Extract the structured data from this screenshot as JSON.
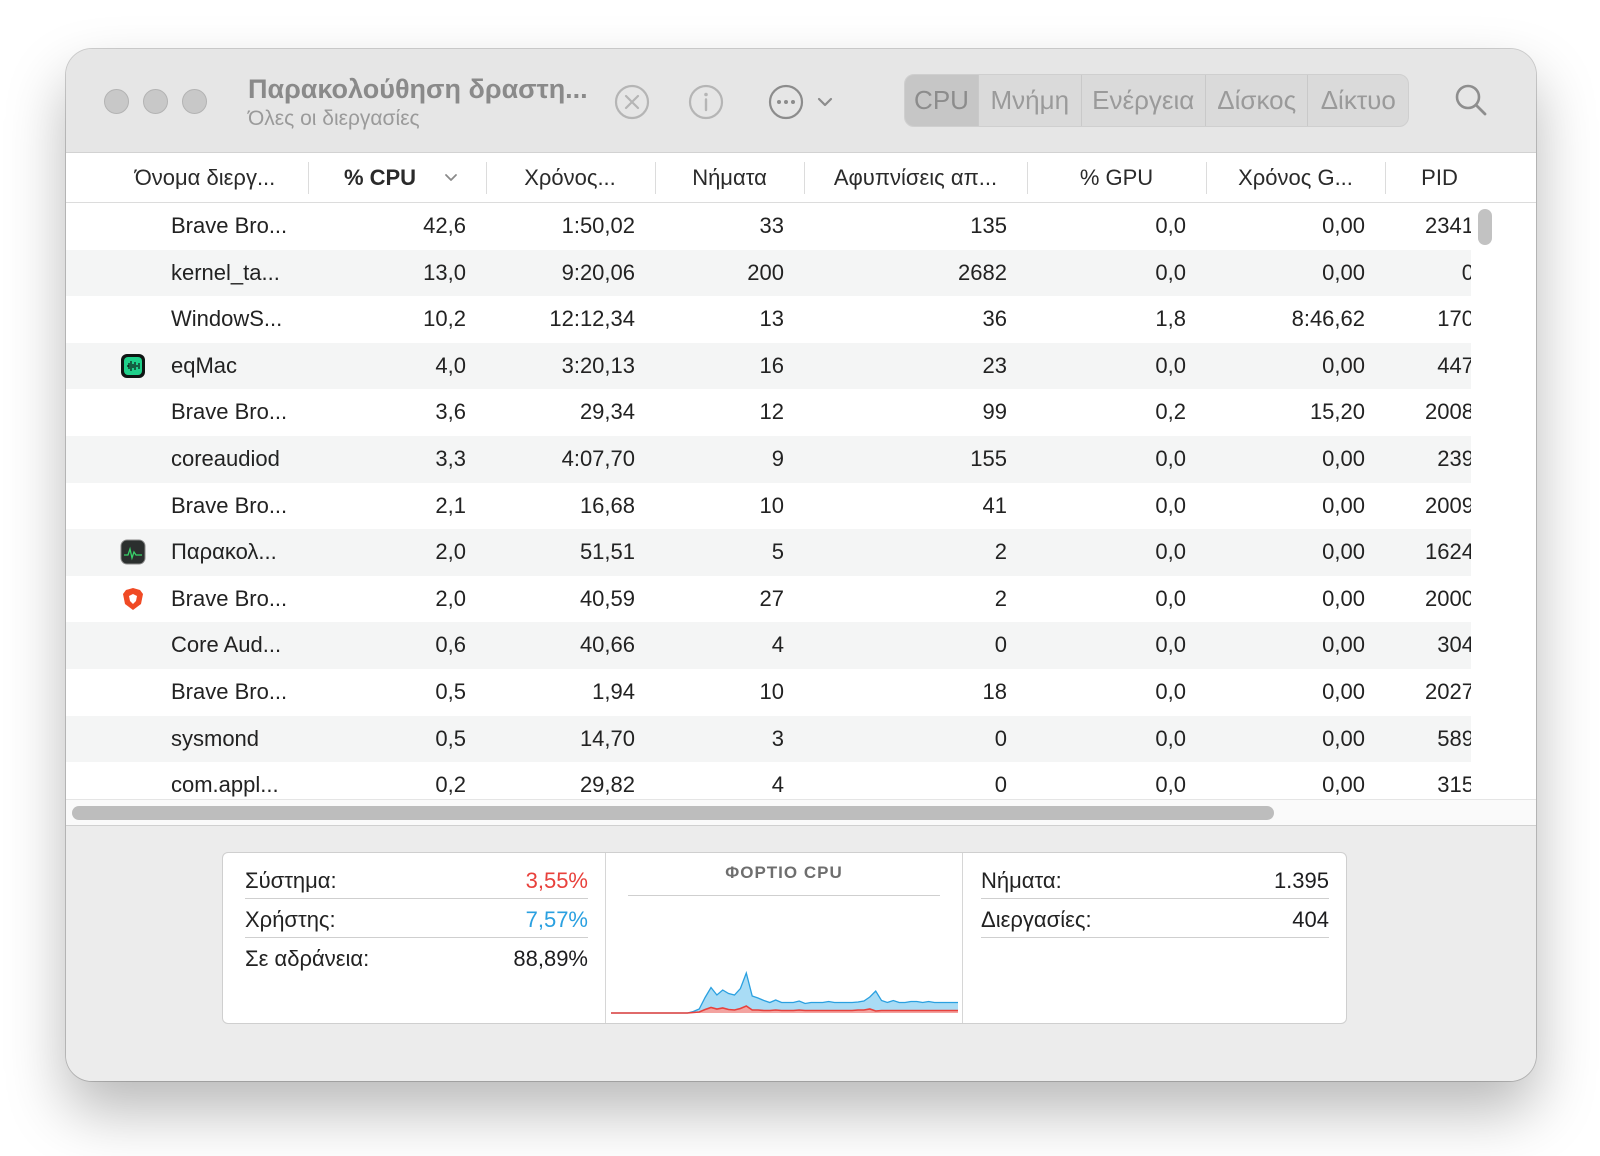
{
  "window": {
    "title": "Παρακολούθηση δραστη...",
    "subtitle": "Όλες οι διεργασίες"
  },
  "toolbar": {
    "icons": [
      "stop-process-icon",
      "info-icon",
      "more-actions-icon",
      "chevron-down-icon",
      "search-icon"
    ],
    "tabs": [
      {
        "label": "CPU",
        "active": true
      },
      {
        "label": "Μνήμη",
        "active": false
      },
      {
        "label": "Ενέργεια",
        "active": false
      },
      {
        "label": "Δίσκος",
        "active": false
      },
      {
        "label": "Δίκτυο",
        "active": false
      }
    ]
  },
  "table": {
    "columns": [
      "Όνομα διεργ...",
      "% CPU",
      "Χρόνος...",
      "Νήματα",
      "Αφυπνίσεις απ...",
      "% GPU",
      "Χρόνος G...",
      "PID"
    ],
    "sorted_column": "% CPU",
    "rows": [
      {
        "icon": "",
        "name": "Brave Bro...",
        "cpu": "42,6",
        "time": "1:50,02",
        "threads": "33",
        "wakeups": "135",
        "gpu": "0,0",
        "gputime": "0,00",
        "pid": "2341"
      },
      {
        "icon": "",
        "name": "kernel_ta...",
        "cpu": "13,0",
        "time": "9:20,06",
        "threads": "200",
        "wakeups": "2682",
        "gpu": "0,0",
        "gputime": "0,00",
        "pid": "0"
      },
      {
        "icon": "",
        "name": "WindowS...",
        "cpu": "10,2",
        "time": "12:12,34",
        "threads": "13",
        "wakeups": "36",
        "gpu": "1,8",
        "gputime": "8:46,62",
        "pid": "170"
      },
      {
        "icon": "eqmac-app-icon",
        "name": "eqMac",
        "cpu": "4,0",
        "time": "3:20,13",
        "threads": "16",
        "wakeups": "23",
        "gpu": "0,0",
        "gputime": "0,00",
        "pid": "447"
      },
      {
        "icon": "",
        "name": "Brave Bro...",
        "cpu": "3,6",
        "time": "29,34",
        "threads": "12",
        "wakeups": "99",
        "gpu": "0,2",
        "gputime": "15,20",
        "pid": "2008"
      },
      {
        "icon": "",
        "name": "coreaudiod",
        "cpu": "3,3",
        "time": "4:07,70",
        "threads": "9",
        "wakeups": "155",
        "gpu": "0,0",
        "gputime": "0,00",
        "pid": "239"
      },
      {
        "icon": "",
        "name": "Brave Bro...",
        "cpu": "2,1",
        "time": "16,68",
        "threads": "10",
        "wakeups": "41",
        "gpu": "0,0",
        "gputime": "0,00",
        "pid": "2009"
      },
      {
        "icon": "activity-monitor-app-icon",
        "name": "Παρακολ...",
        "cpu": "2,0",
        "time": "51,51",
        "threads": "5",
        "wakeups": "2",
        "gpu": "0,0",
        "gputime": "0,00",
        "pid": "1624"
      },
      {
        "icon": "brave-app-icon",
        "name": "Brave Bro...",
        "cpu": "2,0",
        "time": "40,59",
        "threads": "27",
        "wakeups": "2",
        "gpu": "0,0",
        "gputime": "0,00",
        "pid": "2000"
      },
      {
        "icon": "",
        "name": "Core Aud...",
        "cpu": "0,6",
        "time": "40,66",
        "threads": "4",
        "wakeups": "0",
        "gpu": "0,0",
        "gputime": "0,00",
        "pid": "304"
      },
      {
        "icon": "",
        "name": "Brave Bro...",
        "cpu": "0,5",
        "time": "1,94",
        "threads": "10",
        "wakeups": "18",
        "gpu": "0,0",
        "gputime": "0,00",
        "pid": "2027"
      },
      {
        "icon": "",
        "name": "sysmond",
        "cpu": "0,5",
        "time": "14,70",
        "threads": "3",
        "wakeups": "0",
        "gpu": "0,0",
        "gputime": "0,00",
        "pid": "589"
      },
      {
        "icon": "",
        "name": "com.appl...",
        "cpu": "0,2",
        "time": "29,82",
        "threads": "4",
        "wakeups": "0",
        "gpu": "0,0",
        "gputime": "0,00",
        "pid": "315"
      }
    ]
  },
  "stats": {
    "system_label": "Σύστημα:",
    "system_value": "3,55%",
    "user_label": "Χρήστης:",
    "user_value": "7,57%",
    "idle_label": "Σε αδράνεια:",
    "idle_value": "88,89%",
    "chart_title": "ΦΟΡΤΙΟ CPU",
    "threads_label": "Νήματα:",
    "threads_value": "1.395",
    "processes_label": "Διεργασίες:",
    "processes_value": "404",
    "colors": {
      "system": "#e8413c",
      "user": "#2aa0e0"
    }
  },
  "chart_data": {
    "type": "area",
    "title": "ΦΟΡΤΙΟ CPU",
    "series": [
      {
        "name": "Σύστημα",
        "values": [
          0,
          0,
          0,
          0,
          0,
          0,
          0,
          0,
          0,
          0,
          0,
          0,
          0,
          0,
          0.5,
          1,
          3.5,
          5.5,
          4,
          5,
          3.5,
          3,
          4.5,
          7,
          3,
          3,
          2.5,
          2.5,
          3,
          2.5,
          2.5,
          2.5,
          3,
          2.5,
          2.5,
          2.5,
          2.5,
          2.5,
          2.5,
          2.5,
          2.5,
          2.5,
          3,
          3,
          4,
          2,
          2.5,
          2.5,
          2.5,
          2.5,
          2.5,
          2.5,
          2.5,
          2.5,
          2.5,
          2.5,
          2.5,
          2.5,
          2.5,
          2.5
        ]
      },
      {
        "name": "Χρήστης",
        "values": [
          0,
          0,
          0,
          0,
          0,
          0,
          0,
          0,
          0,
          0,
          0,
          0,
          0,
          0,
          1,
          3,
          12,
          20,
          14,
          18,
          16,
          15,
          20,
          33,
          14,
          12,
          10,
          8,
          10,
          8,
          8,
          8,
          9,
          7,
          8,
          8,
          8,
          9,
          8,
          8,
          8,
          8,
          8,
          9,
          12,
          20,
          10,
          8,
          10,
          8,
          8,
          9,
          9,
          8,
          9,
          8,
          8,
          8,
          8,
          8
        ]
      }
    ],
    "ylim": [
      0,
      100
    ]
  }
}
